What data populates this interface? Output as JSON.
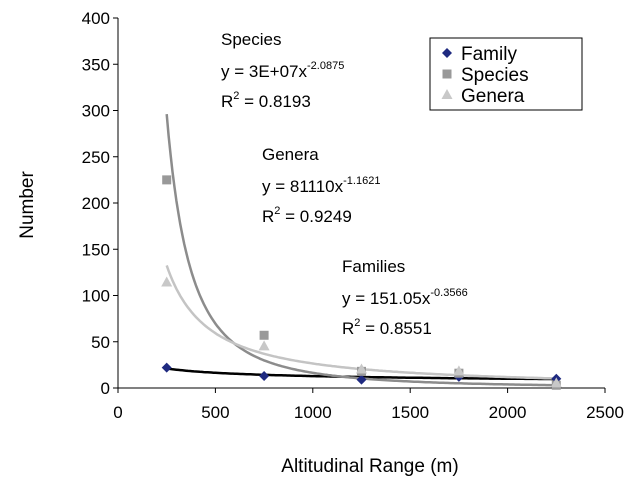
{
  "chart_data": {
    "type": "scatter",
    "x_label": "Altitudinal Range (m)",
    "y_label": "Number",
    "xlim": [
      0,
      2500
    ],
    "xticks": [
      0,
      500,
      1000,
      1500,
      2000,
      2500
    ],
    "ylim": [
      0,
      400
    ],
    "yticks": [
      0,
      50,
      100,
      150,
      200,
      250,
      300,
      350,
      400
    ],
    "x": [
      250,
      750,
      1250,
      1750,
      2250
    ],
    "equation_tokens": {
      "y": "y = ",
      "x": "x",
      "r": "R",
      "power": "2",
      "equals": " = "
    },
    "series": [
      {
        "name": "Family",
        "color": "#1f2a80",
        "marker": "diamond",
        "values": [
          22,
          13,
          9,
          12,
          10
        ],
        "trend": {
          "label": "Families",
          "color": "#000000",
          "coefficient": 151.05,
          "exponent": -0.3566,
          "r2": 0.8551
        }
      },
      {
        "name": "Species",
        "color": "#999999",
        "marker": "square",
        "values": [
          225,
          57,
          18,
          16,
          3
        ],
        "trend": {
          "label": "Species",
          "color": "#8c8c8c",
          "coefficient": {
            "value": 30000000,
            "label": "3E+07"
          },
          "exponent": -2.0875,
          "r2": 0.8193
        }
      },
      {
        "name": "Genera",
        "color": "#c8c8c8",
        "marker": "triangle",
        "values": [
          114,
          45,
          20,
          18,
          5
        ],
        "trend": {
          "label": "Genera",
          "color": "#c4c4c4",
          "coefficient": 81110,
          "exponent": -1.1621,
          "r2": 0.9249
        }
      }
    ]
  }
}
